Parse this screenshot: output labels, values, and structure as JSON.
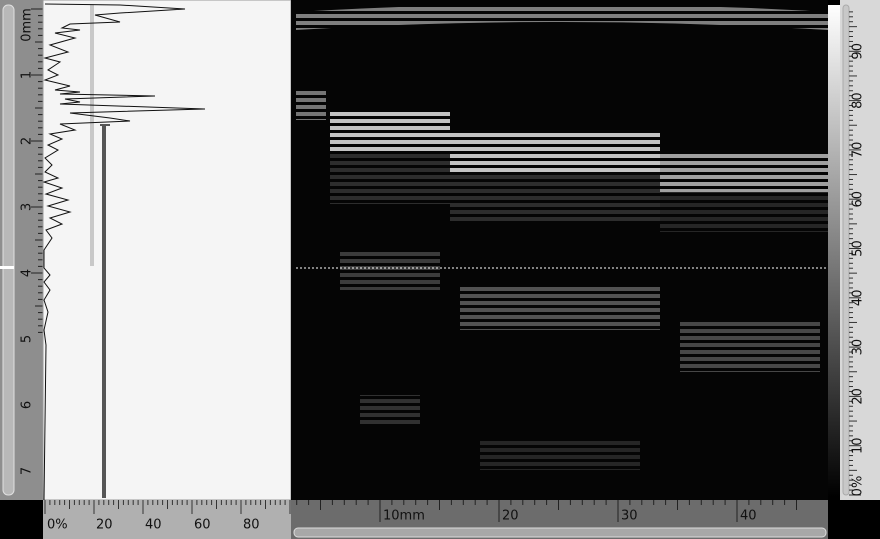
{
  "depth_ruler": {
    "labels": [
      "0mm",
      "1",
      "2",
      "3",
      "4",
      "5",
      "6",
      "7"
    ]
  },
  "amplitude_ruler": {
    "labels": [
      "0%",
      "20",
      "40",
      "60",
      "80"
    ]
  },
  "scan_ruler": {
    "labels": [
      "10mm",
      "20",
      "30",
      "40"
    ]
  },
  "color_scale": {
    "labels": [
      "0%",
      "10",
      "20",
      "30",
      "40",
      "50",
      "60",
      "70",
      "80",
      "90"
    ]
  }
}
